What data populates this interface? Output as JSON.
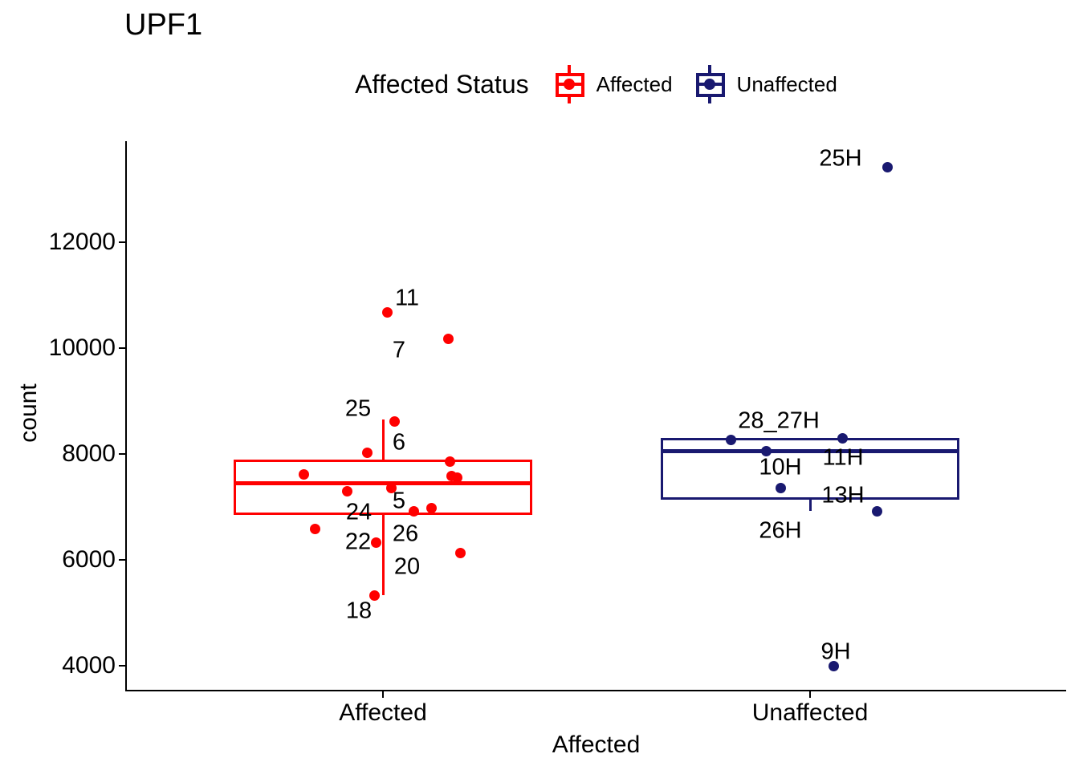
{
  "title": "UPF1",
  "legend": {
    "title": "Affected Status",
    "items": [
      {
        "label": "Affected",
        "color": "#ff0000",
        "icon": "boxplot-key-icon"
      },
      {
        "label": "Unaffected",
        "color": "#191970",
        "icon": "boxplot-key-icon"
      }
    ]
  },
  "axes": {
    "y": {
      "title": "count",
      "ticks": [
        4000,
        6000,
        8000,
        10000,
        12000
      ]
    },
    "x": {
      "title": "Affected",
      "categories": [
        "Affected",
        "Unaffected"
      ]
    }
  },
  "chart_data": {
    "type": "boxplot",
    "subtype": "boxplot-with-jittered-labeled-points",
    "title": "UPF1",
    "xlabel": "Affected",
    "ylabel": "count",
    "ylim": [
      3900,
      13950
    ],
    "grid": false,
    "legend_position": "top-center",
    "categories": [
      "Affected",
      "Unaffected"
    ],
    "groups": [
      {
        "name": "Affected",
        "color": "#ff0000",
        "box": {
          "whisker_low": 5330,
          "q1": 6850,
          "median": 7450,
          "q3": 7900,
          "whisker_high": 8650
        },
        "points": [
          {
            "label": "11",
            "dx": 5,
            "count": 10680
          },
          {
            "label": "7",
            "dx": 81,
            "count": 10170
          },
          {
            "label": "6",
            "dx": 14,
            "count": 8620
          },
          {
            "label": "25",
            "dx": -20,
            "count": 8020
          },
          {
            "label": "",
            "dx": -99,
            "count": 7610
          },
          {
            "label": "",
            "dx": 83,
            "count": 7850
          },
          {
            "label": "",
            "dx": 85,
            "count": 7590
          },
          {
            "label": "",
            "dx": 92,
            "count": 7560
          },
          {
            "label": "24",
            "dx": -45,
            "count": 7300
          },
          {
            "label": "5",
            "dx": 10,
            "count": 7360
          },
          {
            "label": "26",
            "dx": 38,
            "count": 6910
          },
          {
            "label": "",
            "dx": 60,
            "count": 6970
          },
          {
            "label": "",
            "dx": -85,
            "count": 6580
          },
          {
            "label": "22",
            "dx": -9,
            "count": 6320
          },
          {
            "label": "20",
            "dx": 96,
            "count": 6130
          },
          {
            "label": "18",
            "dx": -11,
            "count": 5320
          }
        ],
        "point_labels": [
          {
            "text": "11",
            "dx": 30,
            "count": 10940
          },
          {
            "text": "7",
            "dx": 20,
            "count": 9950
          },
          {
            "text": "25",
            "dx": -31,
            "count": 8850
          },
          {
            "text": "6",
            "dx": 20,
            "count": 8210
          },
          {
            "text": "24",
            "dx": -30,
            "count": 6890
          },
          {
            "text": "5",
            "dx": 20,
            "count": 7110
          },
          {
            "text": "26",
            "dx": 28,
            "count": 6490
          },
          {
            "text": "22",
            "dx": -31,
            "count": 6330
          },
          {
            "text": "20",
            "dx": 30,
            "count": 5860
          },
          {
            "text": "18",
            "dx": -30,
            "count": 5030
          }
        ]
      },
      {
        "name": "Unaffected",
        "color": "#191970",
        "box": {
          "whisker_low": 6920,
          "q1": 7140,
          "median": 8060,
          "q3": 8300,
          "whisker_high": 8300
        },
        "points": [
          {
            "label": "25H",
            "dx": 96,
            "count": 13420
          },
          {
            "label": "28_27H",
            "dx": -99,
            "count": 8270
          },
          {
            "label": "11H",
            "dx": 40,
            "count": 8290
          },
          {
            "label": "10H",
            "dx": -55,
            "count": 8060
          },
          {
            "label": "26H",
            "dx": -37,
            "count": 7350
          },
          {
            "label": "13H",
            "dx": 83,
            "count": 6920
          },
          {
            "label": "9H",
            "dx": 29,
            "count": 3990
          }
        ],
        "point_labels": [
          {
            "text": "25H",
            "dx": 38,
            "count": 13580
          },
          {
            "text": "28_27H",
            "dx": -39,
            "count": 8620
          },
          {
            "text": "11H",
            "dx": 41,
            "count": 7920
          },
          {
            "text": "10H",
            "dx": -37,
            "count": 7740
          },
          {
            "text": "13H",
            "dx": 41,
            "count": 7210
          },
          {
            "text": "26H",
            "dx": -37,
            "count": 6540
          },
          {
            "text": "9H",
            "dx": 32,
            "count": 4260
          }
        ]
      }
    ]
  }
}
